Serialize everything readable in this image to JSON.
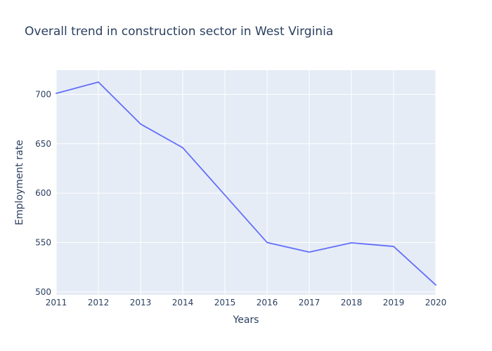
{
  "chart_data": {
    "type": "line",
    "title": "Overall trend in construction sector in West Virginia",
    "xlabel": "Years",
    "ylabel": "Employment rate",
    "x": [
      2011,
      2012,
      2013,
      2014,
      2015,
      2016,
      2017,
      2018,
      2019,
      2020
    ],
    "series": [
      {
        "values": [
          701,
          712.5,
          670,
          646,
          598,
          550,
          540.3,
          549.7,
          546,
          507
        ]
      }
    ],
    "xlim": [
      2011,
      2020
    ],
    "ylim": [
      497,
      724.5
    ],
    "x_ticks": [
      2011,
      2012,
      2013,
      2014,
      2015,
      2016,
      2017,
      2018,
      2019,
      2020
    ],
    "y_ticks": [
      500,
      550,
      600,
      650,
      700
    ],
    "grid": true,
    "colors": {
      "plot_background": "#e5ecf6",
      "grid": "#ffffff",
      "line": "#636efa",
      "text": "#2a3f5f"
    }
  }
}
